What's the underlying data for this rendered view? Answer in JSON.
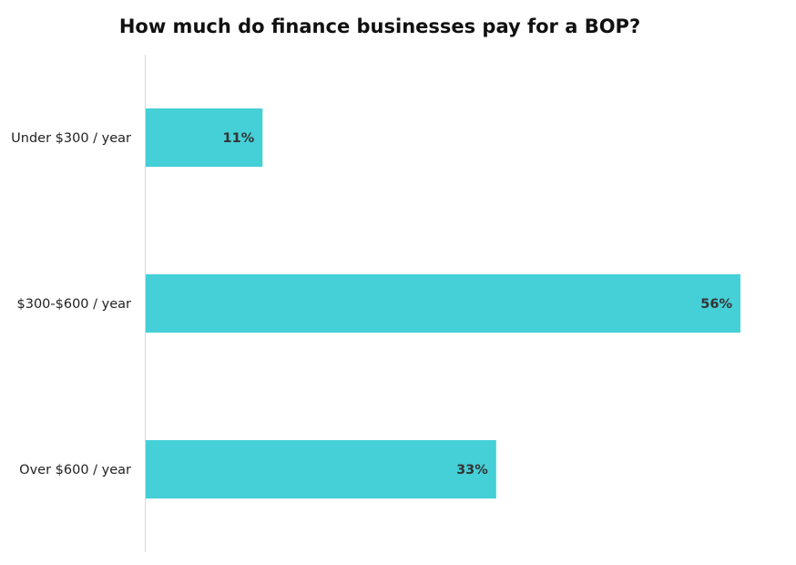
{
  "chart_data": {
    "type": "bar",
    "orientation": "horizontal",
    "title": "How much do finance businesses pay for a BOP?",
    "categories": [
      "Under $300 / year",
      "$300-$600 / year",
      "Over $600 / year"
    ],
    "values": [
      11,
      56,
      33
    ],
    "value_labels": [
      "11%",
      "56%",
      "33%"
    ],
    "unit": "%",
    "xlim": [
      0,
      56
    ],
    "grid": false,
    "legend": "none",
    "bar_color": "#45CFD7",
    "axis_color": "#d9d9d9"
  }
}
